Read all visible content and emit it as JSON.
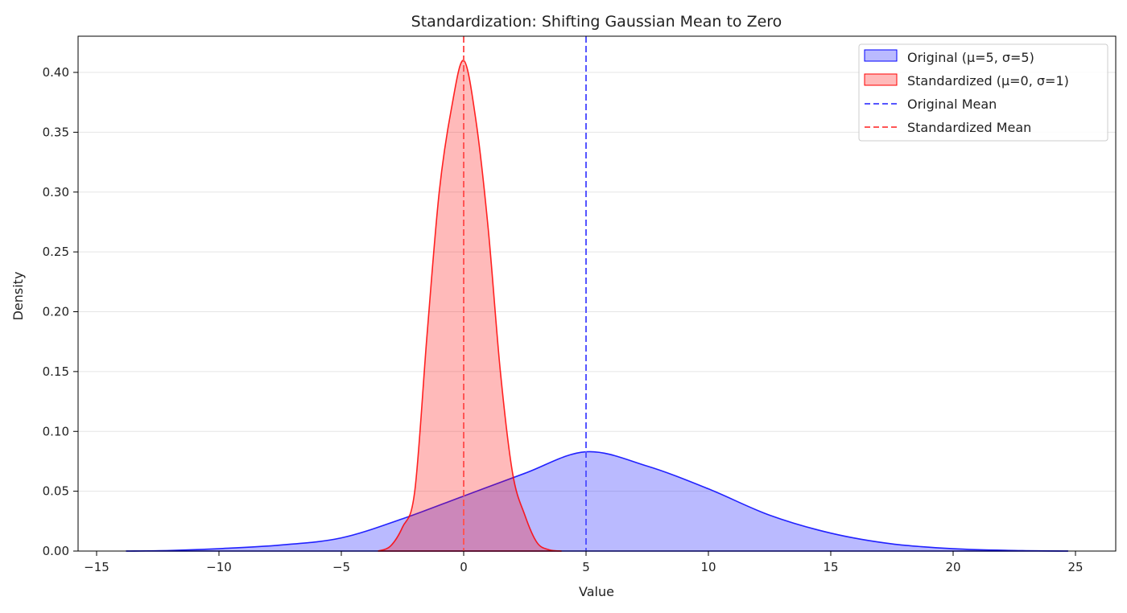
{
  "chart_data": {
    "type": "area",
    "title": "Standardization: Shifting Gaussian Mean to Zero",
    "xlabel": "Value",
    "ylabel": "Density",
    "xlim": [
      -16,
      26.5
    ],
    "ylim": [
      0,
      0.43
    ],
    "xticks": [
      -15,
      -10,
      -5,
      0,
      5,
      10,
      15,
      20,
      25
    ],
    "xtick_labels": [
      "−15",
      "−10",
      "−5",
      "0",
      "5",
      "10",
      "15",
      "20",
      "25"
    ],
    "yticks": [
      0,
      0.05,
      0.1,
      0.15,
      0.2,
      0.25,
      0.3,
      0.35,
      0.4
    ],
    "ytick_labels": [
      "0.00",
      "0.05",
      "0.10",
      "0.15",
      "0.20",
      "0.25",
      "0.30",
      "0.35",
      "0.40"
    ],
    "grid": "horizontal",
    "legend_position": "top-right",
    "series": [
      {
        "name": "Original (μ=5, σ=5)",
        "color": "#0000ff",
        "x": [
          -13.8,
          -12,
          -10,
          -7.5,
          -5,
          -2.5,
          0,
          2.5,
          5,
          7.5,
          10,
          12.5,
          15,
          17.5,
          20,
          22.5,
          24.7
        ],
        "y": [
          0,
          0.0005,
          0.002,
          0.005,
          0.011,
          0.027,
          0.046,
          0.065,
          0.083,
          0.071,
          0.052,
          0.03,
          0.015,
          0.006,
          0.002,
          0.0005,
          0
        ]
      },
      {
        "name": "Standardized (μ=0, σ=1)",
        "color": "#ff0000",
        "x": [
          -3.5,
          -3,
          -2.5,
          -2,
          -1.5,
          -1,
          -0.5,
          0,
          0.5,
          1,
          1.5,
          2,
          2.5,
          3,
          3.5,
          4
        ],
        "y": [
          0,
          0.004,
          0.02,
          0.05,
          0.18,
          0.3,
          0.37,
          0.41,
          0.36,
          0.27,
          0.15,
          0.065,
          0.03,
          0.007,
          0.001,
          0
        ]
      }
    ],
    "vlines": [
      {
        "name": "Original Mean",
        "x": 5,
        "color": "#5555ff"
      },
      {
        "name": "Standardized Mean",
        "x": 0,
        "color": "#ff5555"
      }
    ]
  }
}
